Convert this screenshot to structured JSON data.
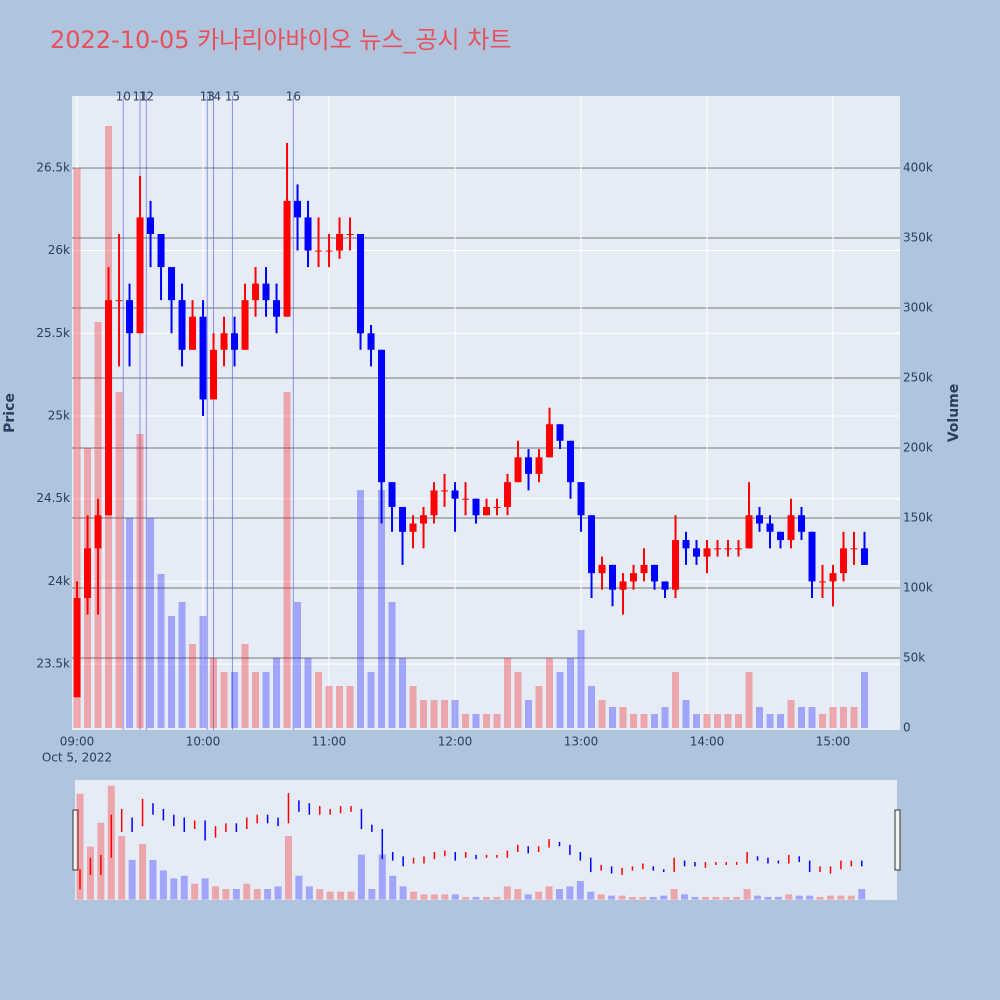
{
  "chart_data": {
    "type": "candlestick",
    "title": "2022-10-05 카나리아바이오 뉴스_공시 차트",
    "title_color": "#e8505b",
    "y_title": "Price",
    "y2_title": "Volume",
    "increasing_color": "#ff0000",
    "decreasing_color": "#0000ff",
    "event_color": "#4a5bdc",
    "x": [
      "2022-10-05 09:00",
      "2022-10-05 09:05",
      "2022-10-05 09:10",
      "2022-10-05 09:15",
      "2022-10-05 09:20",
      "2022-10-05 09:25",
      "2022-10-05 09:30",
      "2022-10-05 09:35",
      "2022-10-05 09:40",
      "2022-10-05 09:45",
      "2022-10-05 09:50",
      "2022-10-05 09:55",
      "2022-10-05 10:00",
      "2022-10-05 10:05",
      "2022-10-05 10:10",
      "2022-10-05 10:15",
      "2022-10-05 10:20",
      "2022-10-05 10:25",
      "2022-10-05 10:30",
      "2022-10-05 10:35",
      "2022-10-05 10:40",
      "2022-10-05 10:45",
      "2022-10-05 10:50",
      "2022-10-05 10:55",
      "2022-10-05 11:00",
      "2022-10-05 11:05",
      "2022-10-05 11:10",
      "2022-10-05 11:15",
      "2022-10-05 11:20",
      "2022-10-05 11:25",
      "2022-10-05 11:30",
      "2022-10-05 11:35",
      "2022-10-05 11:40",
      "2022-10-05 11:45",
      "2022-10-05 11:50",
      "2022-10-05 11:55",
      "2022-10-05 12:00",
      "2022-10-05 12:05",
      "2022-10-05 12:10",
      "2022-10-05 12:15",
      "2022-10-05 12:20",
      "2022-10-05 12:25",
      "2022-10-05 12:30",
      "2022-10-05 12:35",
      "2022-10-05 12:40",
      "2022-10-05 12:45",
      "2022-10-05 12:50",
      "2022-10-05 12:55",
      "2022-10-05 13:00",
      "2022-10-05 13:05",
      "2022-10-05 13:10",
      "2022-10-05 13:15",
      "2022-10-05 13:20",
      "2022-10-05 13:25",
      "2022-10-05 13:30",
      "2022-10-05 13:35",
      "2022-10-05 13:40",
      "2022-10-05 13:45",
      "2022-10-05 13:50",
      "2022-10-05 13:55",
      "2022-10-05 14:00",
      "2022-10-05 14:05",
      "2022-10-05 14:10",
      "2022-10-05 14:15",
      "2022-10-05 14:20",
      "2022-10-05 14:25",
      "2022-10-05 14:30",
      "2022-10-05 14:35",
      "2022-10-05 14:40",
      "2022-10-05 14:45",
      "2022-10-05 14:50",
      "2022-10-05 14:55",
      "2022-10-05 15:00",
      "2022-10-05 15:05",
      "2022-10-05 15:10",
      "2022-10-05 15:15"
    ],
    "open": [
      23300,
      23900,
      24200,
      24400,
      25700,
      25700,
      25500,
      26200,
      26100,
      25900,
      25700,
      25400,
      25600,
      25100,
      25400,
      25500,
      25400,
      25700,
      25800,
      25700,
      25600,
      26300,
      26200,
      26000,
      26000,
      26000,
      26100,
      26100,
      25500,
      25400,
      24600,
      24450,
      24300,
      24350,
      24400,
      24550,
      24550,
      24500,
      24500,
      24400,
      24450,
      24450,
      24600,
      24750,
      24650,
      24750,
      24950,
      24850,
      24600,
      24400,
      24050,
      24100,
      23950,
      24000,
      24050,
      24100,
      24000,
      23950,
      24250,
      24200,
      24150,
      24200,
      24200,
      24200,
      24200,
      24400,
      24350,
      24300,
      24250,
      24400,
      24300,
      24000,
      24000,
      24050,
      24200,
      24200
    ],
    "high": [
      24000,
      24400,
      24500,
      25900,
      26100,
      25800,
      26450,
      26300,
      26100,
      25900,
      25800,
      25700,
      25700,
      25500,
      25600,
      25600,
      25800,
      25900,
      25900,
      25800,
      26650,
      26400,
      26300,
      26200,
      26100,
      26200,
      26200,
      26100,
      25550,
      25400,
      24600,
      24450,
      24400,
      24450,
      24600,
      24650,
      24600,
      24600,
      24500,
      24500,
      24500,
      24650,
      24850,
      24800,
      24800,
      25050,
      24950,
      24850,
      24600,
      24400,
      24150,
      24100,
      24050,
      24100,
      24200,
      24100,
      24000,
      24400,
      24300,
      24250,
      24250,
      24250,
      24250,
      24250,
      24600,
      24450,
      24400,
      24300,
      24500,
      24450,
      24300,
      24100,
      24100,
      24300,
      24300,
      24300
    ],
    "low": [
      23300,
      23800,
      23800,
      24400,
      25300,
      25300,
      25500,
      25900,
      25700,
      25500,
      25300,
      25400,
      25000,
      25100,
      25300,
      25300,
      25400,
      25600,
      25600,
      25500,
      25600,
      26000,
      25900,
      25900,
      25900,
      25950,
      26000,
      25400,
      25300,
      24350,
      24300,
      24100,
      24200,
      24200,
      24350,
      24450,
      24300,
      24400,
      24350,
      24400,
      24400,
      24400,
      24600,
      24550,
      24600,
      24750,
      24800,
      24500,
      24300,
      23900,
      23950,
      23850,
      23800,
      23950,
      24000,
      23950,
      23900,
      23900,
      24100,
      24100,
      24050,
      24150,
      24150,
      24150,
      24200,
      24300,
      24200,
      24200,
      24200,
      24250,
      23900,
      23900,
      23850,
      24000,
      24100,
      24100
    ],
    "close": [
      23900,
      24200,
      24400,
      25700,
      25700,
      25500,
      26200,
      26100,
      25900,
      25700,
      25400,
      25600,
      25100,
      25400,
      25500,
      25400,
      25700,
      25800,
      25700,
      25600,
      26300,
      26200,
      26000,
      26000,
      26000,
      26100,
      26100,
      25500,
      25400,
      24600,
      24450,
      24300,
      24350,
      24400,
      24550,
      24550,
      24500,
      24500,
      24400,
      24450,
      24450,
      24600,
      24750,
      24650,
      24750,
      24950,
      24850,
      24600,
      24400,
      24050,
      24100,
      23950,
      24000,
      24050,
      24100,
      24000,
      23950,
      24250,
      24200,
      24150,
      24200,
      24200,
      24200,
      24200,
      24400,
      24350,
      24300,
      24250,
      24400,
      24300,
      24000,
      24000,
      24050,
      24200,
      24200,
      24100
    ],
    "volume": [
      400000,
      200000,
      290000,
      430000,
      240000,
      150000,
      210000,
      150000,
      110000,
      80000,
      90000,
      60000,
      80000,
      50000,
      40000,
      40000,
      60000,
      40000,
      40000,
      50000,
      240000,
      90000,
      50000,
      40000,
      30000,
      30000,
      30000,
      170000,
      40000,
      170000,
      90000,
      50000,
      30000,
      20000,
      20000,
      20000,
      20000,
      10000,
      10000,
      10000,
      10000,
      50000,
      40000,
      20000,
      30000,
      50000,
      40000,
      50000,
      70000,
      30000,
      20000,
      15000,
      15000,
      10000,
      10000,
      10000,
      15000,
      40000,
      20000,
      10000,
      10000,
      10000,
      10000,
      10000,
      40000,
      15000,
      10000,
      10000,
      20000,
      15000,
      15000,
      10000,
      15000,
      15000,
      15000,
      40000
    ],
    "xlim": [
      "2022-10-05 08:57:36",
      "2022-10-05 15:31:54"
    ],
    "xticks": [
      {
        "value": "2022-10-05 09:00",
        "label": "09:00"
      },
      {
        "value": "2022-10-05 10:00",
        "label": "10:00"
      },
      {
        "value": "2022-10-05 11:00",
        "label": "11:00"
      },
      {
        "value": "2022-10-05 12:00",
        "label": "12:00"
      },
      {
        "value": "2022-10-05 13:00",
        "label": "13:00"
      },
      {
        "value": "2022-10-05 14:00",
        "label": "14:00"
      },
      {
        "value": "2022-10-05 15:00",
        "label": "15:00"
      }
    ],
    "x_date_label": "Oct 5, 2022",
    "ylim": [
      23102,
      26934
    ],
    "yticks": [
      {
        "value": 23500,
        "label": "23.5k"
      },
      {
        "value": 24000,
        "label": "24k"
      },
      {
        "value": 24500,
        "label": "24.5k"
      },
      {
        "value": 25000,
        "label": "25k"
      },
      {
        "value": 25500,
        "label": "25.5k"
      },
      {
        "value": 26000,
        "label": "26k"
      },
      {
        "value": 26500,
        "label": "26.5k"
      }
    ],
    "y2lim": [
      -1430,
      451430
    ],
    "y2ticks": [
      0,
      {
        "value": 50000,
        "label": "50k"
      },
      {
        "value": 100000,
        "label": "100k"
      },
      {
        "value": 150000,
        "label": "150k"
      },
      {
        "value": 200000,
        "label": "200k"
      },
      {
        "value": 250000,
        "label": "250k"
      },
      {
        "value": 300000,
        "label": "300k"
      },
      {
        "value": 350000,
        "label": "350k"
      },
      {
        "value": 400000,
        "label": "400k"
      }
    ],
    "events": [
      {
        "x": "2022-10-05 09:22",
        "label": "10"
      },
      {
        "x": "2022-10-05 09:30",
        "label": "11"
      },
      {
        "x": "2022-10-05 09:33",
        "label": "12"
      },
      {
        "x": "2022-10-05 10:02",
        "label": "13"
      },
      {
        "x": "2022-10-05 10:05",
        "label": "14"
      },
      {
        "x": "2022-10-05 10:14",
        "label": "15"
      },
      {
        "x": "2022-10-05 10:43",
        "label": "16"
      }
    ],
    "grid": true,
    "rangeslider": true
  }
}
